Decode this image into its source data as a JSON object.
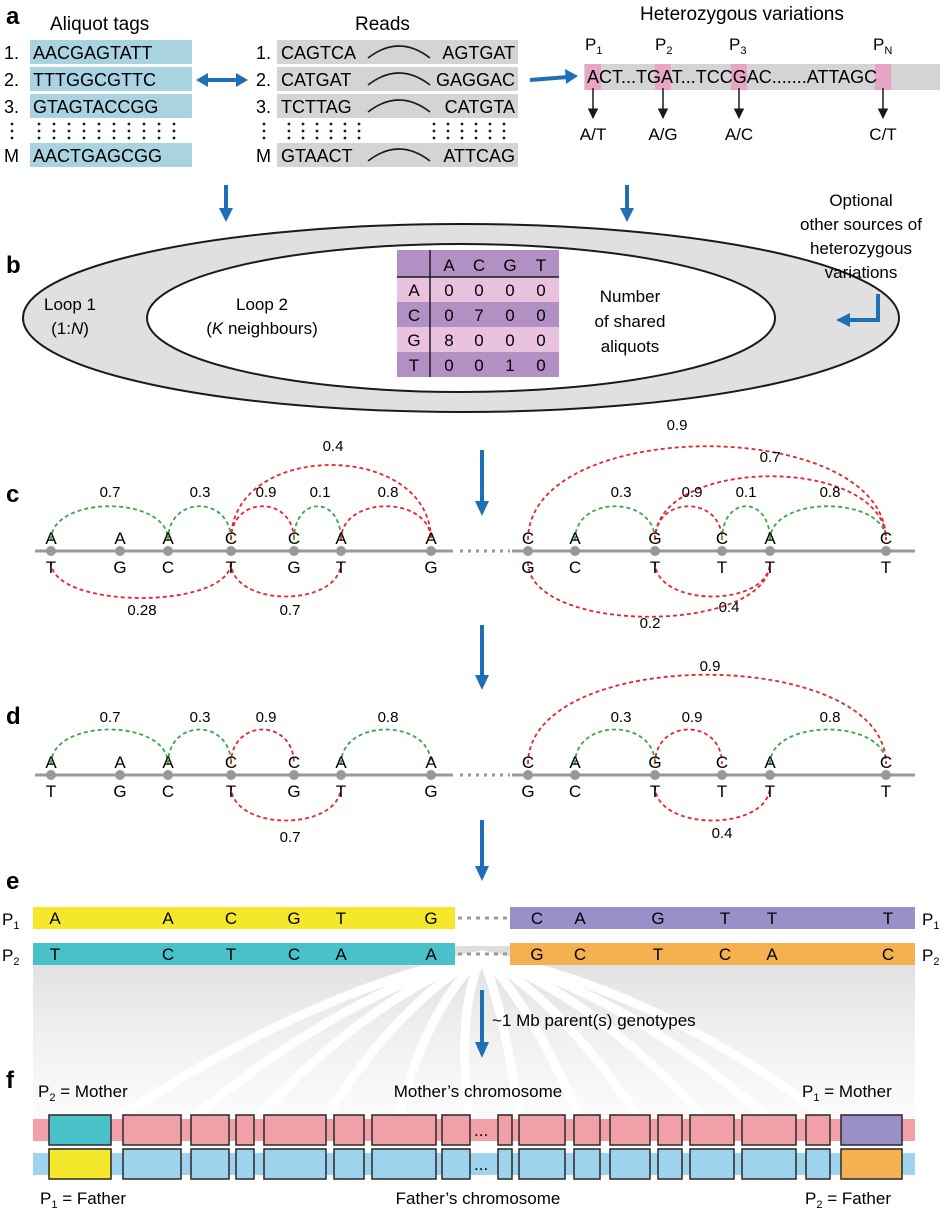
{
  "colors": {
    "tag": "#a9d3e0",
    "read": "#d4d4d4",
    "het": "#e8a5c6",
    "purple": "#b390c4",
    "pink": "#e8c2df",
    "green": "#3aa84a",
    "red": "#e6262d",
    "arrow": "#1f6fb5",
    "yellow": "#f5e82a",
    "teal": "#49c1c9",
    "lavender": "#9a8fc8",
    "orange": "#f5b050",
    "mother": "#f2a0a8",
    "father": "#9ed3ee"
  },
  "panels": {
    "a": "a",
    "b": "b",
    "c": "c",
    "d": "d",
    "e": "e",
    "f": "f"
  },
  "a": {
    "tags_title": "Aliquot tags",
    "reads_title": "Reads",
    "het_title": "Heterozygous variations",
    "tags": [
      {
        "idx": "1.",
        "seq": "AACGAGTATT"
      },
      {
        "idx": "2.",
        "seq": "TTTGGCGTTC"
      },
      {
        "idx": "3.",
        "seq": "GTAGTACCGG"
      },
      {
        "idx": "M",
        "seq": "AACTGAGCGG"
      }
    ],
    "reads": [
      {
        "idx": "1.",
        "left": "CAGTCA",
        "right": "AGTGAT"
      },
      {
        "idx": "2.",
        "left": "CATGAT",
        "right": "GAGGAC"
      },
      {
        "idx": "3.",
        "left": "TCTTAG",
        "right": "CATGTA"
      },
      {
        "idx": "M",
        "left": "GTAACT",
        "right": "ATTCAG"
      }
    ],
    "het_positions": [
      {
        "p": "P",
        "sub": "1"
      },
      {
        "p": "P",
        "sub": "2"
      },
      {
        "p": "P",
        "sub": "3"
      },
      {
        "p": "P",
        "sub": "N"
      }
    ],
    "het_seq": [
      "A",
      "CT...T",
      "G",
      "AT...T",
      "C",
      "CGAC.......AT",
      "T",
      "AGC"
    ],
    "alleles": [
      "A/T",
      "A/G",
      "A/C",
      "C/T"
    ],
    "optional_lines": [
      "Optional",
      "other sources of",
      "heterozygous",
      "variations"
    ]
  },
  "b": {
    "loop1": "Loop 1",
    "loop1_sub_pre": "(1:",
    "loop1_sub_it": "N",
    "loop1_sub_post": ")",
    "loop2": "Loop 2",
    "loop2_sub_pre": "(",
    "loop2_sub_it": "K",
    "loop2_sub_post": " neighbours)",
    "table_header": [
      "A",
      "C",
      "G",
      "T"
    ],
    "table_rows": [
      {
        "label": "A",
        "values": [
          "0",
          "0",
          "0",
          "0"
        ]
      },
      {
        "label": "C",
        "values": [
          "0",
          "7",
          "0",
          "0"
        ]
      },
      {
        "label": "G",
        "values": [
          "8",
          "0",
          "0",
          "0"
        ]
      },
      {
        "label": "T",
        "values": [
          "0",
          "0",
          "1",
          "0"
        ]
      }
    ],
    "shared_lines": [
      "Number",
      "of shared",
      "aliquots"
    ]
  },
  "c": {
    "left_top": [
      "A",
      "A",
      "A",
      "C",
      "C",
      "A",
      "A"
    ],
    "left_bottom": [
      "T",
      "G",
      "C",
      "T",
      "G",
      "T",
      "G"
    ],
    "right_top": [
      "C",
      "A",
      "G",
      "C",
      "A",
      "C"
    ],
    "right_bottom": [
      "G",
      "C",
      "T",
      "T",
      "T",
      "T"
    ],
    "labels": [
      "0.7",
      "0.3",
      "0.9",
      "0.1",
      "0.8",
      "0.4",
      "0.28",
      "0.7",
      "0.3",
      "0.9",
      "0.1",
      "0.8",
      "0.9",
      "0.7",
      "0.2",
      "0.4"
    ]
  },
  "d": {
    "left_top": [
      "A",
      "A",
      "A",
      "C",
      "C",
      "A",
      "A"
    ],
    "left_bottom": [
      "T",
      "G",
      "C",
      "T",
      "G",
      "T",
      "G"
    ],
    "right_top": [
      "C",
      "A",
      "G",
      "C",
      "A",
      "C"
    ],
    "right_bottom": [
      "G",
      "C",
      "T",
      "T",
      "T",
      "T"
    ],
    "labels": [
      "0.7",
      "0.3",
      "0.9",
      "0.8",
      "0.7",
      "0.3",
      "0.9",
      "0.8",
      "0.9",
      "0.4"
    ]
  },
  "e": {
    "p1_left": [
      "A",
      "A",
      "C",
      "G",
      "T",
      "G"
    ],
    "p1_right": [
      "C",
      "A",
      "G",
      "T",
      "T",
      "T"
    ],
    "p2_left": [
      "T",
      "C",
      "T",
      "C",
      "A",
      "A"
    ],
    "p2_right": [
      "G",
      "C",
      "T",
      "C",
      "A",
      "C"
    ],
    "p1_label": {
      "p": "P",
      "sub": "1"
    },
    "p2_label": {
      "p": "P",
      "sub": "2"
    },
    "mb_text": "~1 Mb parent(s) genotypes"
  },
  "f": {
    "p2_mother": {
      "p": "P",
      "sub": "2",
      "rest": " = Mother"
    },
    "p1_mother": {
      "p": "P",
      "sub": "1",
      "rest": " = Mother"
    },
    "p1_father": {
      "p": "P",
      "sub": "1",
      "rest": " = Father"
    },
    "p2_father": {
      "p": "P",
      "sub": "2",
      "rest": " = Father"
    },
    "mother_chr": "Mother’s chromosome",
    "father_chr": "Father’s chromosome",
    "dots": "..."
  }
}
